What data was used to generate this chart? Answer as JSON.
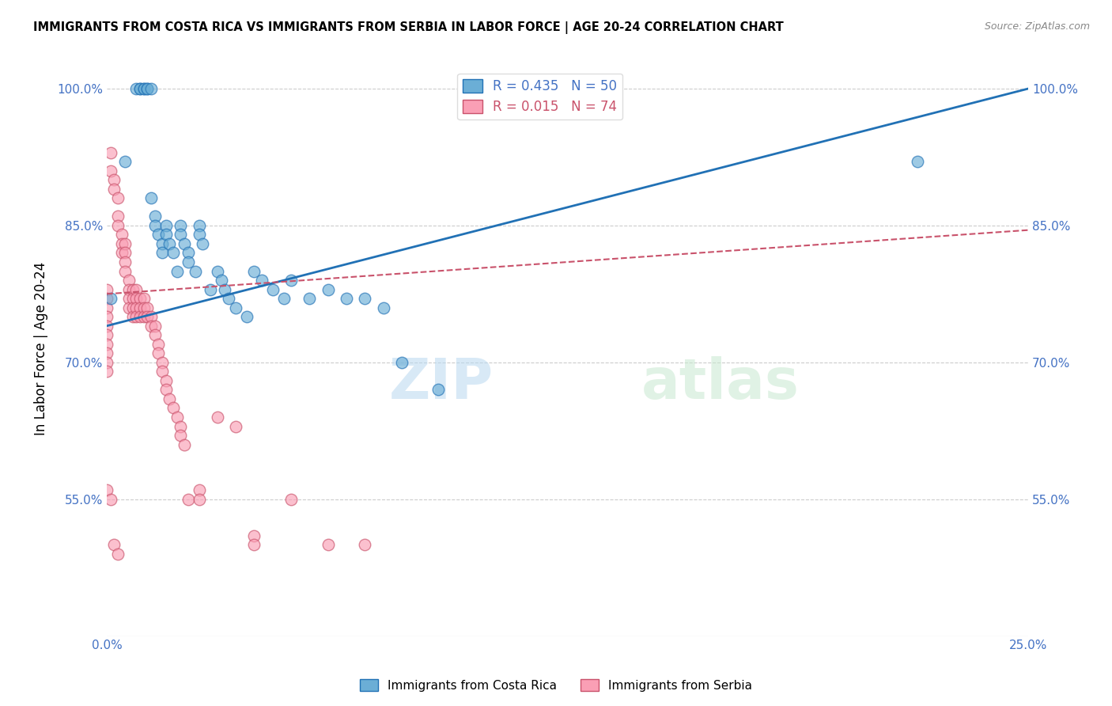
{
  "title": "IMMIGRANTS FROM COSTA RICA VS IMMIGRANTS FROM SERBIA IN LABOR FORCE | AGE 20-24 CORRELATION CHART",
  "source": "Source: ZipAtlas.com",
  "ylabel": "In Labor Force | Age 20-24",
  "xlim": [
    0.0,
    0.25
  ],
  "ylim": [
    0.4,
    1.03
  ],
  "yticks": [
    0.55,
    0.7,
    0.85,
    1.0
  ],
  "ytick_labels": [
    "55.0%",
    "70.0%",
    "85.0%",
    "100.0%"
  ],
  "xticks": [
    0.0,
    0.05,
    0.1,
    0.15,
    0.2,
    0.25
  ],
  "xtick_labels": [
    "0.0%",
    "",
    "",
    "",
    "",
    "25.0%"
  ],
  "blue_R": 0.435,
  "blue_N": 50,
  "pink_R": 0.015,
  "pink_N": 74,
  "blue_color": "#6baed6",
  "pink_color": "#fa9fb5",
  "blue_line_color": "#2171b5",
  "pink_line_color": "#c9526b",
  "axis_color": "#4472c4",
  "watermark_zip": "ZIP",
  "watermark_atlas": "atlas",
  "legend_label_blue": "Immigrants from Costa Rica",
  "legend_label_pink": "Immigrants from Serbia",
  "blue_scatter_x": [
    0.001,
    0.005,
    0.008,
    0.009,
    0.009,
    0.01,
    0.01,
    0.011,
    0.011,
    0.012,
    0.012,
    0.013,
    0.013,
    0.014,
    0.015,
    0.015,
    0.016,
    0.016,
    0.017,
    0.018,
    0.019,
    0.02,
    0.02,
    0.021,
    0.022,
    0.022,
    0.024,
    0.025,
    0.025,
    0.026,
    0.028,
    0.03,
    0.031,
    0.032,
    0.033,
    0.035,
    0.038,
    0.04,
    0.042,
    0.045,
    0.048,
    0.05,
    0.055,
    0.06,
    0.065,
    0.07,
    0.075,
    0.08,
    0.09,
    0.22
  ],
  "blue_scatter_y": [
    0.77,
    0.92,
    1.0,
    1.0,
    1.0,
    1.0,
    1.0,
    1.0,
    1.0,
    1.0,
    0.88,
    0.86,
    0.85,
    0.84,
    0.83,
    0.82,
    0.85,
    0.84,
    0.83,
    0.82,
    0.8,
    0.85,
    0.84,
    0.83,
    0.82,
    0.81,
    0.8,
    0.85,
    0.84,
    0.83,
    0.78,
    0.8,
    0.79,
    0.78,
    0.77,
    0.76,
    0.75,
    0.8,
    0.79,
    0.78,
    0.77,
    0.79,
    0.77,
    0.78,
    0.77,
    0.77,
    0.76,
    0.7,
    0.67,
    0.92
  ],
  "pink_scatter_x": [
    0.0,
    0.0,
    0.0,
    0.0,
    0.0,
    0.0,
    0.0,
    0.0,
    0.0,
    0.0,
    0.001,
    0.001,
    0.002,
    0.002,
    0.003,
    0.003,
    0.003,
    0.004,
    0.004,
    0.004,
    0.005,
    0.005,
    0.005,
    0.005,
    0.006,
    0.006,
    0.006,
    0.006,
    0.007,
    0.007,
    0.007,
    0.007,
    0.008,
    0.008,
    0.008,
    0.008,
    0.009,
    0.009,
    0.009,
    0.01,
    0.01,
    0.01,
    0.011,
    0.011,
    0.012,
    0.012,
    0.013,
    0.013,
    0.014,
    0.014,
    0.015,
    0.015,
    0.016,
    0.016,
    0.017,
    0.018,
    0.019,
    0.02,
    0.02,
    0.021,
    0.022,
    0.025,
    0.025,
    0.03,
    0.035,
    0.04,
    0.04,
    0.05,
    0.06,
    0.07,
    0.0,
    0.001,
    0.002,
    0.003
  ],
  "pink_scatter_y": [
    0.78,
    0.77,
    0.76,
    0.75,
    0.74,
    0.73,
    0.72,
    0.71,
    0.7,
    0.69,
    0.93,
    0.91,
    0.9,
    0.89,
    0.88,
    0.86,
    0.85,
    0.84,
    0.83,
    0.82,
    0.83,
    0.82,
    0.81,
    0.8,
    0.79,
    0.78,
    0.77,
    0.76,
    0.78,
    0.77,
    0.76,
    0.75,
    0.78,
    0.77,
    0.76,
    0.75,
    0.77,
    0.76,
    0.75,
    0.77,
    0.76,
    0.75,
    0.76,
    0.75,
    0.75,
    0.74,
    0.74,
    0.73,
    0.72,
    0.71,
    0.7,
    0.69,
    0.68,
    0.67,
    0.66,
    0.65,
    0.64,
    0.63,
    0.62,
    0.61,
    0.55,
    0.56,
    0.55,
    0.64,
    0.63,
    0.51,
    0.5,
    0.55,
    0.5,
    0.5,
    0.56,
    0.55,
    0.5,
    0.49
  ],
  "blue_trendline_x": [
    0.0,
    0.25
  ],
  "blue_trendline_y": [
    0.74,
    1.0
  ],
  "pink_trendline_x": [
    0.0,
    0.25
  ],
  "pink_trendline_y": [
    0.775,
    0.845
  ]
}
